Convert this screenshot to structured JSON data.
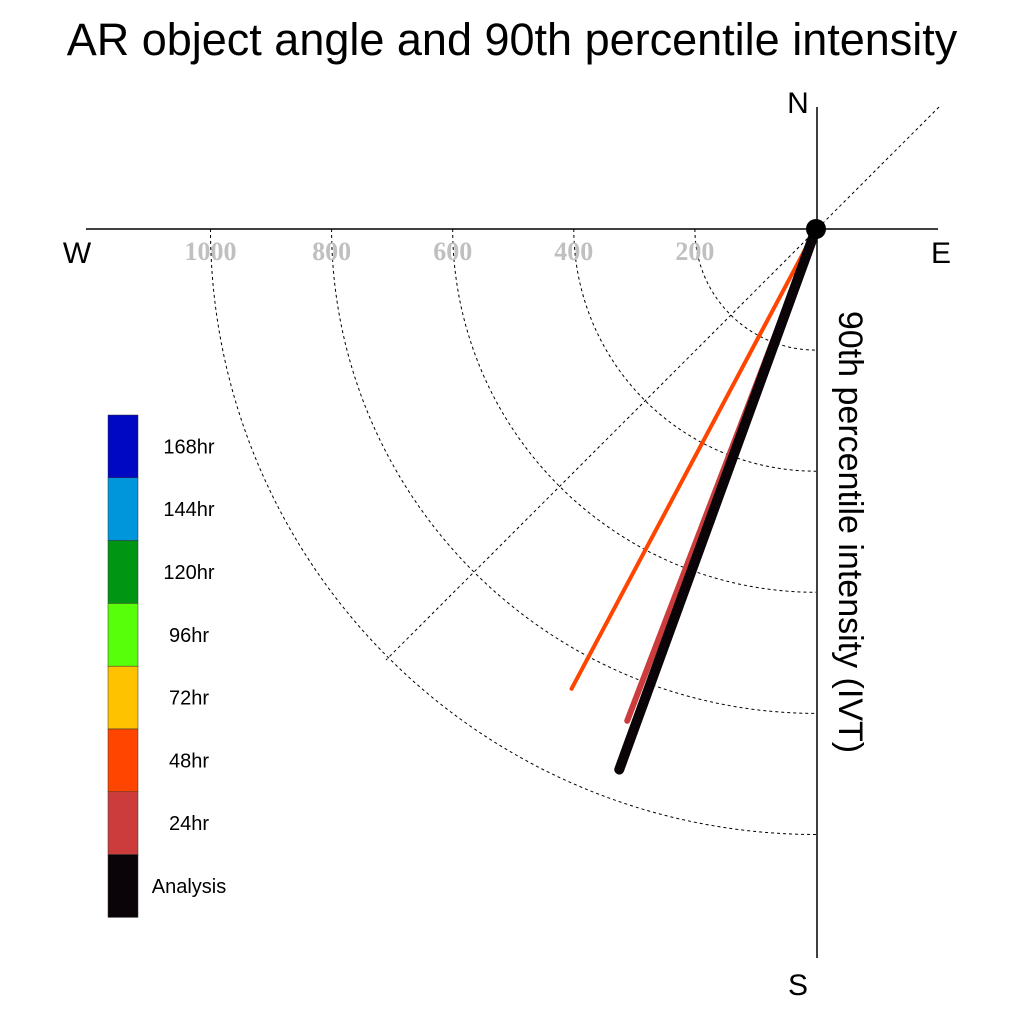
{
  "chart_data": {
    "type": "polar-vector",
    "title": "AR object angle and 90th percentile intensity",
    "radial_label": "90th percentile intensity (IVT)",
    "radial_range": [
      0,
      1200
    ],
    "radial_ticks": [
      200,
      400,
      600,
      800,
      1000
    ],
    "radial_tick_labels": [
      "200",
      "400",
      "600",
      "800",
      "1000"
    ],
    "directions": {
      "north": "N",
      "south": "S",
      "east": "E",
      "west": "W"
    },
    "series": [
      {
        "name": "48hr",
        "color": "#ff4500",
        "intensity": 860,
        "angle_deg": 208,
        "width": 4
      },
      {
        "name": "24hr",
        "color": "#cc3c3c",
        "intensity": 870,
        "angle_deg": 201,
        "width": 6
      },
      {
        "name": "Analysis",
        "color": "#0a0308",
        "intensity": 950,
        "angle_deg": 200,
        "width": 10
      }
    ],
    "legend": [
      {
        "label": "168hr",
        "color": "#0008c4"
      },
      {
        "label": "144hr",
        "color": "#0096dc"
      },
      {
        "label": "120hr",
        "color": "#009614"
      },
      {
        "label": "96hr",
        "color": "#58ff0a"
      },
      {
        "label": "72hr",
        "color": "#ffc200"
      },
      {
        "label": "48hr",
        "color": "#ff4500"
      },
      {
        "label": "24hr",
        "color": "#cc3c3c"
      },
      {
        "label": "Analysis",
        "color": "#0a0308"
      }
    ]
  }
}
